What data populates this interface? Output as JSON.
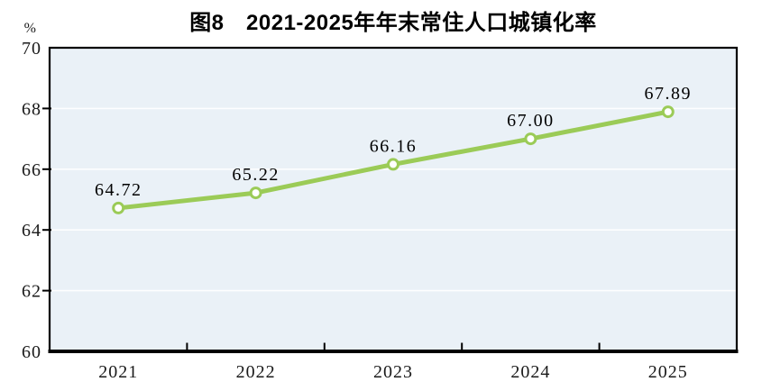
{
  "chart_data": {
    "type": "line",
    "title": "图8　2021-2025年年末常住人口城镇化率",
    "unit_label": "%",
    "categories": [
      "2021",
      "2022",
      "2023",
      "2024",
      "2025"
    ],
    "series": [
      {
        "name": "年末常住人口城镇化率",
        "values": [
          64.72,
          65.22,
          66.16,
          67.0,
          67.89
        ]
      }
    ],
    "data_labels": [
      "64.72",
      "65.22",
      "66.16",
      "67.00",
      "67.89"
    ],
    "xlabel": "",
    "ylabel": "%",
    "ylim": [
      60,
      70
    ],
    "yticks": [
      60,
      62,
      64,
      66,
      68,
      70
    ],
    "grid": true,
    "legend_position": "none",
    "colors": {
      "line": "#9BCB57",
      "marker_fill": "#FFFFFF",
      "plot_bg": "#EAF1F7",
      "grid": "#FFFFFF",
      "axis": "#000000",
      "text": "#000000"
    }
  }
}
